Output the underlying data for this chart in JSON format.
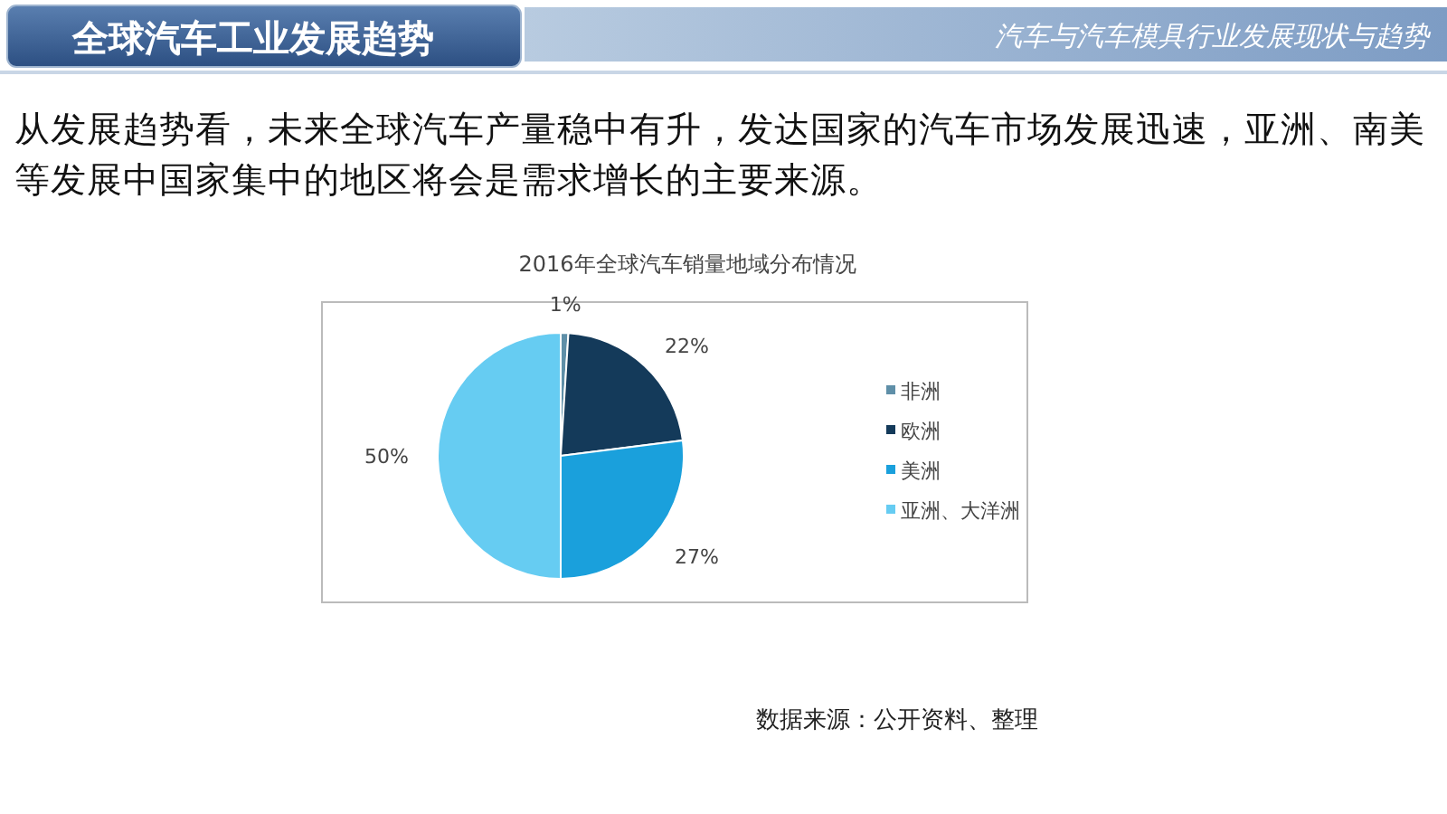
{
  "chart_data": {
    "type": "pie",
    "title": "2016年全球汽车销量地域分布情况",
    "categories": [
      "非洲",
      "欧洲",
      "美洲",
      "亚洲、大洋洲"
    ],
    "values": [
      1,
      22,
      27,
      50
    ],
    "colors": [
      "#5f8fa8",
      "#143a5a",
      "#1aa0dc",
      "#66ccf2"
    ],
    "value_labels": [
      "1%",
      "22%",
      "27%",
      "50%"
    ],
    "legend": "right",
    "annotations": [
      "全球汽车工业发展趋势",
      "汽车与汽车模具行业发展现状与趋势",
      "从发展趋势看，未来全球汽车产量稳中有升，发达国家的汽车市场发展迅速，亚洲、南美等发展中国家集中的地区将会是需求增长的主要来源。",
      "数据来源：公开资料、整理"
    ]
  }
}
